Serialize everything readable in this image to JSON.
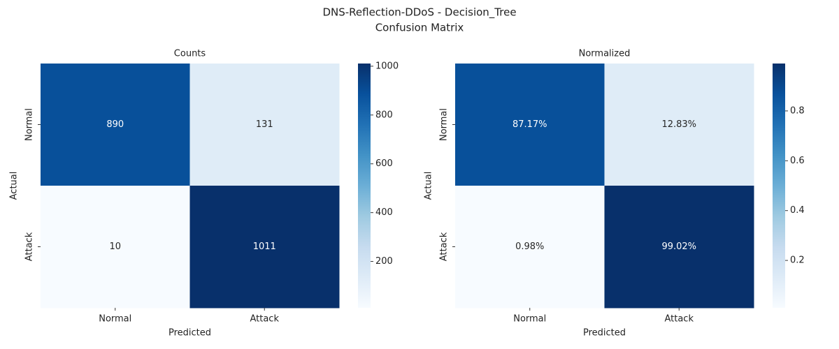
{
  "suptitle": [
    "DNS-Reflection-DDoS - Decision_Tree",
    "Confusion Matrix"
  ],
  "chart_data": [
    {
      "type": "heatmap",
      "title": "Counts",
      "xlabel": "Predicted",
      "ylabel": "Actual",
      "x_categories": [
        "Normal",
        "Attack"
      ],
      "y_categories": [
        "Normal",
        "Attack"
      ],
      "values": [
        [
          890,
          131
        ],
        [
          10,
          1011
        ]
      ],
      "colormap": "Blues",
      "clim": [
        10,
        1011
      ],
      "cticks": [
        200,
        400,
        600,
        800,
        1000
      ]
    },
    {
      "type": "heatmap",
      "title": "Normalized",
      "xlabel": "Predicted",
      "ylabel": "Actual",
      "x_categories": [
        "Normal",
        "Attack"
      ],
      "y_categories": [
        "Normal",
        "Attack"
      ],
      "values": [
        [
          0.8717,
          0.1283
        ],
        [
          0.0098,
          0.9902
        ]
      ],
      "value_labels": [
        [
          "87.17%",
          "12.83%"
        ],
        [
          "0.98%",
          "99.02%"
        ]
      ],
      "colormap": "Blues",
      "clim": [
        0.0098,
        0.9902
      ],
      "cticks": [
        0.2,
        0.4,
        0.6,
        0.8
      ]
    }
  ]
}
